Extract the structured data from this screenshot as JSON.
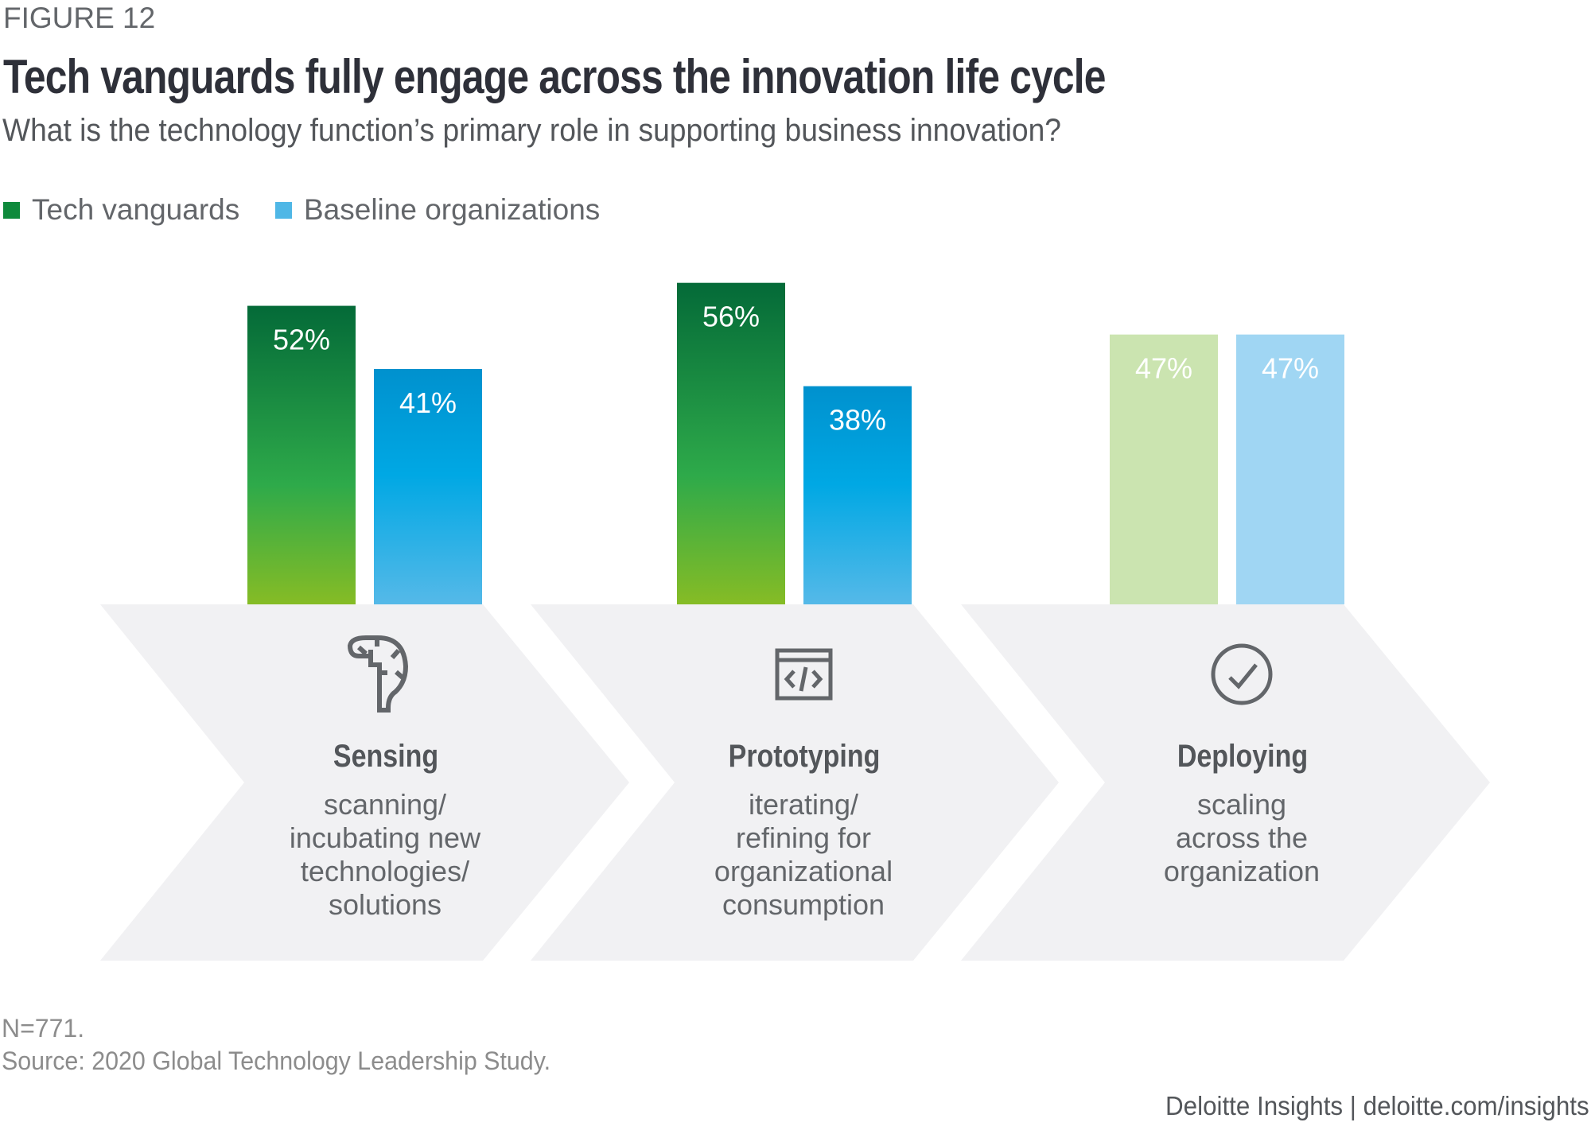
{
  "figure_label": "FIGURE 12",
  "title": "Tech vanguards fully engage across the innovation life cycle",
  "subtitle": "What is the technology function’s primary role in supporting business innovation?",
  "legend": [
    {
      "label": "Tech vanguards",
      "color": "#0F8A3C"
    },
    {
      "label": "Baseline organizations",
      "color": "#4FB7E6"
    }
  ],
  "colors": {
    "vanguard_gradient": [
      "#046A38",
      "#2EAA4A",
      "#86BC25"
    ],
    "baseline_gradient": [
      "#0091CE",
      "#00A8E4",
      "#55B9E8"
    ],
    "vanguard_muted": "#CBE4B0",
    "baseline_muted": "#A0D6F3",
    "chevron_fill": "#F1F1F3",
    "icon_stroke": "#63666A"
  },
  "chart_data": {
    "type": "bar",
    "title": "Tech vanguards fully engage across the innovation life cycle",
    "subtitle": "What is the technology function’s primary role in supporting business innovation?",
    "xlabel": "",
    "ylabel": "",
    "ylim": [
      0,
      60
    ],
    "grid": false,
    "legend_position": "top-left",
    "categories": [
      "Sensing",
      "Prototyping",
      "Deploying"
    ],
    "series": [
      {
        "name": "Tech vanguards",
        "values": [
          52,
          56,
          47
        ],
        "labels": [
          "52%",
          "56%",
          "47%"
        ]
      },
      {
        "name": "Baseline organizations",
        "values": [
          41,
          38,
          47
        ],
        "labels": [
          "41%",
          "38%",
          "47%"
        ]
      }
    ],
    "muted_categories": [
      "Deploying"
    ]
  },
  "steps": [
    {
      "icon": "brain-icon",
      "title": "Sensing",
      "lines": [
        "scanning/",
        "incubating new",
        "technologies/",
        "solutions"
      ]
    },
    {
      "icon": "code-window-icon",
      "title": "Prototyping",
      "lines": [
        "iterating/",
        "refining for",
        "organizational",
        "consumption"
      ]
    },
    {
      "icon": "checkmark-circle-icon",
      "title": "Deploying",
      "lines": [
        "scaling",
        "across the",
        "organization"
      ]
    }
  ],
  "footnotes": {
    "n": "N=771.",
    "source": "Source: 2020 Global Technology Leadership Study."
  },
  "credit": "Deloitte Insights | deloitte.com/insights"
}
